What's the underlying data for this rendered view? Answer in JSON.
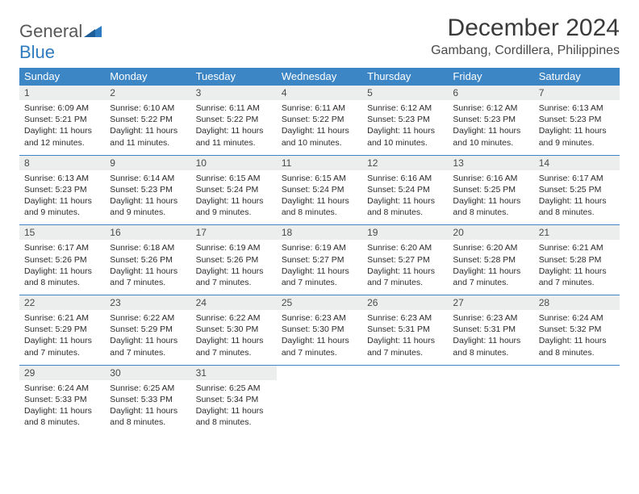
{
  "brand": {
    "part1": "General",
    "part2": "Blue"
  },
  "title": "December 2024",
  "location": "Gambang, Cordillera, Philippines",
  "colors": {
    "header_bg": "#3d86c6",
    "header_text": "#ffffff",
    "daynum_bg": "#eceded",
    "row_border": "#3d86c6",
    "brand_gray": "#58585a",
    "brand_blue": "#2f7bbf",
    "body_text": "#2b2b2b"
  },
  "fonts": {
    "title_size_pt": 22,
    "location_size_pt": 12,
    "header_size_pt": 10,
    "cell_size_pt": 8
  },
  "columns": [
    "Sunday",
    "Monday",
    "Tuesday",
    "Wednesday",
    "Thursday",
    "Friday",
    "Saturday"
  ],
  "weeks": [
    [
      {
        "n": "1",
        "sr": "6:09 AM",
        "ss": "5:21 PM",
        "dl": "11 hours and 12 minutes."
      },
      {
        "n": "2",
        "sr": "6:10 AM",
        "ss": "5:22 PM",
        "dl": "11 hours and 11 minutes."
      },
      {
        "n": "3",
        "sr": "6:11 AM",
        "ss": "5:22 PM",
        "dl": "11 hours and 11 minutes."
      },
      {
        "n": "4",
        "sr": "6:11 AM",
        "ss": "5:22 PM",
        "dl": "11 hours and 10 minutes."
      },
      {
        "n": "5",
        "sr": "6:12 AM",
        "ss": "5:23 PM",
        "dl": "11 hours and 10 minutes."
      },
      {
        "n": "6",
        "sr": "6:12 AM",
        "ss": "5:23 PM",
        "dl": "11 hours and 10 minutes."
      },
      {
        "n": "7",
        "sr": "6:13 AM",
        "ss": "5:23 PM",
        "dl": "11 hours and 9 minutes."
      }
    ],
    [
      {
        "n": "8",
        "sr": "6:13 AM",
        "ss": "5:23 PM",
        "dl": "11 hours and 9 minutes."
      },
      {
        "n": "9",
        "sr": "6:14 AM",
        "ss": "5:23 PM",
        "dl": "11 hours and 9 minutes."
      },
      {
        "n": "10",
        "sr": "6:15 AM",
        "ss": "5:24 PM",
        "dl": "11 hours and 9 minutes."
      },
      {
        "n": "11",
        "sr": "6:15 AM",
        "ss": "5:24 PM",
        "dl": "11 hours and 8 minutes."
      },
      {
        "n": "12",
        "sr": "6:16 AM",
        "ss": "5:24 PM",
        "dl": "11 hours and 8 minutes."
      },
      {
        "n": "13",
        "sr": "6:16 AM",
        "ss": "5:25 PM",
        "dl": "11 hours and 8 minutes."
      },
      {
        "n": "14",
        "sr": "6:17 AM",
        "ss": "5:25 PM",
        "dl": "11 hours and 8 minutes."
      }
    ],
    [
      {
        "n": "15",
        "sr": "6:17 AM",
        "ss": "5:26 PM",
        "dl": "11 hours and 8 minutes."
      },
      {
        "n": "16",
        "sr": "6:18 AM",
        "ss": "5:26 PM",
        "dl": "11 hours and 7 minutes."
      },
      {
        "n": "17",
        "sr": "6:19 AM",
        "ss": "5:26 PM",
        "dl": "11 hours and 7 minutes."
      },
      {
        "n": "18",
        "sr": "6:19 AM",
        "ss": "5:27 PM",
        "dl": "11 hours and 7 minutes."
      },
      {
        "n": "19",
        "sr": "6:20 AM",
        "ss": "5:27 PM",
        "dl": "11 hours and 7 minutes."
      },
      {
        "n": "20",
        "sr": "6:20 AM",
        "ss": "5:28 PM",
        "dl": "11 hours and 7 minutes."
      },
      {
        "n": "21",
        "sr": "6:21 AM",
        "ss": "5:28 PM",
        "dl": "11 hours and 7 minutes."
      }
    ],
    [
      {
        "n": "22",
        "sr": "6:21 AM",
        "ss": "5:29 PM",
        "dl": "11 hours and 7 minutes."
      },
      {
        "n": "23",
        "sr": "6:22 AM",
        "ss": "5:29 PM",
        "dl": "11 hours and 7 minutes."
      },
      {
        "n": "24",
        "sr": "6:22 AM",
        "ss": "5:30 PM",
        "dl": "11 hours and 7 minutes."
      },
      {
        "n": "25",
        "sr": "6:23 AM",
        "ss": "5:30 PM",
        "dl": "11 hours and 7 minutes."
      },
      {
        "n": "26",
        "sr": "6:23 AM",
        "ss": "5:31 PM",
        "dl": "11 hours and 7 minutes."
      },
      {
        "n": "27",
        "sr": "6:23 AM",
        "ss": "5:31 PM",
        "dl": "11 hours and 8 minutes."
      },
      {
        "n": "28",
        "sr": "6:24 AM",
        "ss": "5:32 PM",
        "dl": "11 hours and 8 minutes."
      }
    ],
    [
      {
        "n": "29",
        "sr": "6:24 AM",
        "ss": "5:33 PM",
        "dl": "11 hours and 8 minutes."
      },
      {
        "n": "30",
        "sr": "6:25 AM",
        "ss": "5:33 PM",
        "dl": "11 hours and 8 minutes."
      },
      {
        "n": "31",
        "sr": "6:25 AM",
        "ss": "5:34 PM",
        "dl": "11 hours and 8 minutes."
      },
      null,
      null,
      null,
      null
    ]
  ],
  "labels": {
    "sunrise": "Sunrise:",
    "sunset": "Sunset:",
    "daylight": "Daylight:"
  }
}
